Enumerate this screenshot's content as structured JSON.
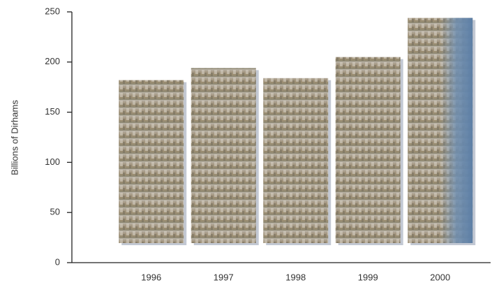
{
  "chart_data": {
    "type": "bar",
    "ylabel": "Billions of Dirhams",
    "categories": [
      "1996",
      "1997",
      "1998",
      "1999",
      "2000"
    ],
    "values": [
      182,
      194,
      184,
      205,
      244
    ],
    "ylim": [
      0,
      250
    ],
    "yticks": [
      0,
      50,
      100,
      150,
      200,
      250
    ]
  }
}
